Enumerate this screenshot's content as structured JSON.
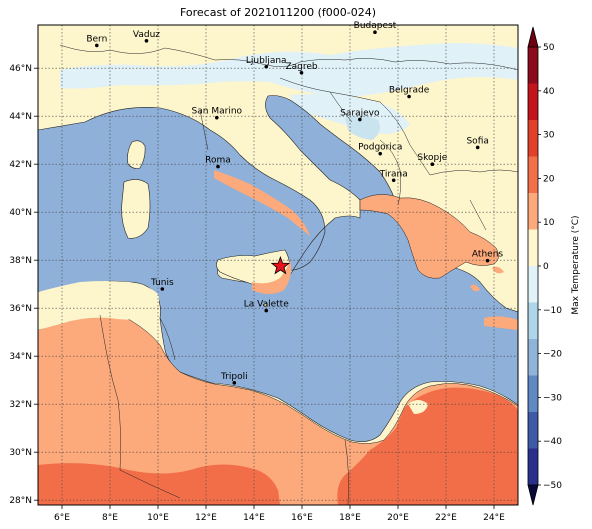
{
  "title": "Forecast of 2021011200 (f000-024)",
  "map": {
    "lon_range": [
      5.0,
      25.0
    ],
    "lat_range": [
      27.8,
      47.8
    ],
    "lon_ticks": [
      {
        "v": 6,
        "label": "6°E"
      },
      {
        "v": 8,
        "label": "8°E"
      },
      {
        "v": 10,
        "label": "10°E"
      },
      {
        "v": 12,
        "label": "12°E"
      },
      {
        "v": 14,
        "label": "14°E"
      },
      {
        "v": 16,
        "label": "16°E"
      },
      {
        "v": 18,
        "label": "18°E"
      },
      {
        "v": 20,
        "label": "20°E"
      },
      {
        "v": 22,
        "label": "22°E"
      },
      {
        "v": 24,
        "label": "24°E"
      }
    ],
    "lat_ticks": [
      {
        "v": 28,
        "label": "28°N"
      },
      {
        "v": 30,
        "label": "30°N"
      },
      {
        "v": 32,
        "label": "32°N"
      },
      {
        "v": 34,
        "label": "34°N"
      },
      {
        "v": 36,
        "label": "36°N"
      },
      {
        "v": 38,
        "label": "38°N"
      },
      {
        "v": 40,
        "label": "40°N"
      },
      {
        "v": 42,
        "label": "42°N"
      },
      {
        "v": 44,
        "label": "44°N"
      },
      {
        "v": 46,
        "label": "46°N"
      }
    ],
    "cities": [
      {
        "name": "Bern",
        "lon": 7.45,
        "lat": 46.95
      },
      {
        "name": "Vaduz",
        "lon": 9.52,
        "lat": 47.14
      },
      {
        "name": "Budapest",
        "lon": 19.04,
        "lat": 47.5
      },
      {
        "name": "Ljubljana",
        "lon": 14.51,
        "lat": 46.06
      },
      {
        "name": "Zagreb",
        "lon": 15.98,
        "lat": 45.81
      },
      {
        "name": "Belgrade",
        "lon": 20.46,
        "lat": 44.82
      },
      {
        "name": "San Marino",
        "lon": 12.45,
        "lat": 43.94
      },
      {
        "name": "Sarajevo",
        "lon": 18.41,
        "lat": 43.86
      },
      {
        "name": "Sofia",
        "lon": 23.32,
        "lat": 42.7
      },
      {
        "name": "Podgorica",
        "lon": 19.26,
        "lat": 42.44
      },
      {
        "name": "Skopje",
        "lon": 21.43,
        "lat": 42.0
      },
      {
        "name": "Roma",
        "lon": 12.5,
        "lat": 41.9
      },
      {
        "name": "Tirana",
        "lon": 19.82,
        "lat": 41.33
      },
      {
        "name": "Athens",
        "lon": 23.73,
        "lat": 37.98
      },
      {
        "name": "Tunis",
        "lon": 10.18,
        "lat": 36.8
      },
      {
        "name": "La Valette",
        "lon": 14.51,
        "lat": 35.9
      },
      {
        "name": "Tripoli",
        "lon": 13.18,
        "lat": 32.89
      }
    ],
    "event_marker": {
      "lon": 15.1,
      "lat": 37.75,
      "color": "#e8141c"
    }
  },
  "colorbar": {
    "label": "Max Temperature (°C)",
    "ticks": [
      "50",
      "40",
      "30",
      "20",
      "10",
      "0",
      "−10",
      "−20",
      "−30",
      "−40",
      "−50"
    ],
    "colors_top_to_bottom": [
      "#8b0a1c",
      "#c3141c",
      "#e2402a",
      "#f3704a",
      "#fca97b",
      "#fff6d0",
      "#e1f2f8",
      "#aed6e8",
      "#8fb3d9",
      "#5e89c3",
      "#3f5aa6",
      "#2b2f8c"
    ]
  },
  "colors": {
    "sea": "#8fb0d8",
    "cool_land": "#fdf5cc",
    "cold_land": "#e0f1f8",
    "warm_land": "#fca97b",
    "hot_land": "#f26e48"
  }
}
